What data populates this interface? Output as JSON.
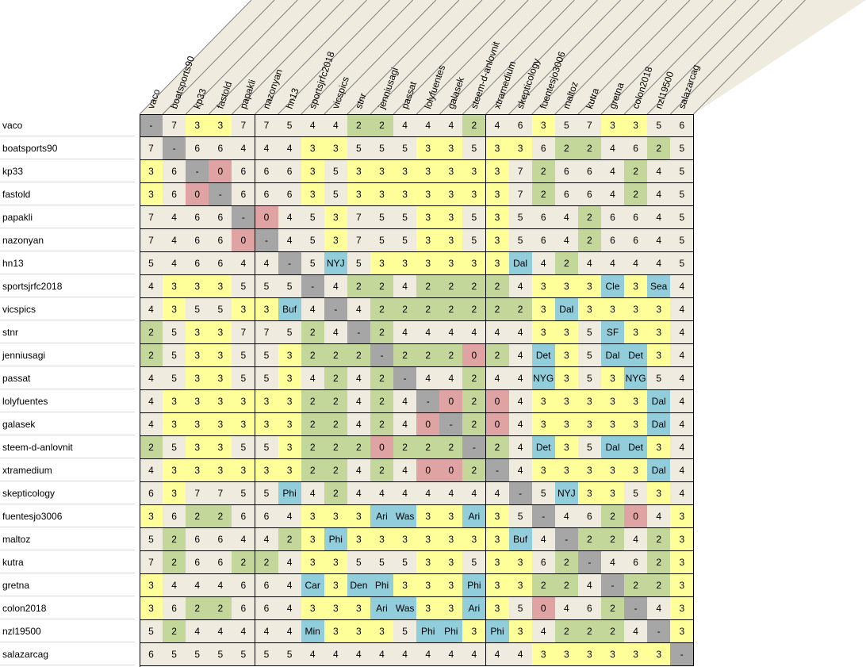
{
  "colors": {
    "self": "#a6a6a6",
    "zero": "#e0a3a3",
    "two": "#c4d79b",
    "three": "#ffff99",
    "default": "#efebde",
    "team": "#92cddc",
    "header_bg": "#efebde",
    "header_line": "#808080"
  },
  "players": [
    "vaco",
    "boatsports90",
    "kp33",
    "fastold",
    "papakli",
    "nazonyan",
    "hn13",
    "sportsjrfc2018",
    "vicspics",
    "stnr",
    "jenniusagi",
    "passat",
    "lolyfuentes",
    "galasek",
    "steem-d-anlovnit",
    "xtramedium",
    "skepticology",
    "fuentesjo3006",
    "maltoz",
    "kutra",
    "gretna",
    "colon2018",
    "nzl19500",
    "salazarcag"
  ],
  "matrix": [
    [
      "-",
      "7",
      "3",
      "3",
      "7",
      "7",
      "5",
      "4",
      "4",
      "2",
      "2",
      "4",
      "4",
      "4",
      "2",
      "4",
      "6",
      "3",
      "5",
      "7",
      "3",
      "3",
      "5",
      "6"
    ],
    [
      "7",
      "-",
      "6",
      "6",
      "4",
      "4",
      "4",
      "3",
      "3",
      "5",
      "5",
      "5",
      "3",
      "3",
      "5",
      "3",
      "3",
      "6",
      "2",
      "2",
      "4",
      "6",
      "2",
      "5"
    ],
    [
      "3",
      "6",
      "-",
      "0",
      "6",
      "6",
      "6",
      "3",
      "5",
      "3",
      "3",
      "3",
      "3",
      "3",
      "3",
      "3",
      "7",
      "2",
      "6",
      "6",
      "4",
      "2",
      "4",
      "5"
    ],
    [
      "3",
      "6",
      "0",
      "-",
      "6",
      "6",
      "6",
      "3",
      "5",
      "3",
      "3",
      "3",
      "3",
      "3",
      "3",
      "3",
      "7",
      "2",
      "6",
      "6",
      "4",
      "2",
      "4",
      "5"
    ],
    [
      "7",
      "4",
      "6",
      "6",
      "-",
      "0",
      "4",
      "5",
      "3",
      "7",
      "5",
      "5",
      "3",
      "3",
      "5",
      "3",
      "5",
      "6",
      "4",
      "2",
      "6",
      "6",
      "4",
      "5"
    ],
    [
      "7",
      "4",
      "6",
      "6",
      "0",
      "-",
      "4",
      "5",
      "3",
      "7",
      "5",
      "5",
      "3",
      "3",
      "5",
      "3",
      "5",
      "6",
      "4",
      "2",
      "6",
      "6",
      "4",
      "5"
    ],
    [
      "5",
      "4",
      "6",
      "6",
      "4",
      "4",
      "-",
      "5",
      "NYJ",
      "5",
      "3",
      "3",
      "3",
      "3",
      "3",
      "3",
      "Dal",
      "4",
      "2",
      "4",
      "4",
      "4",
      "4",
      "5"
    ],
    [
      "4",
      "3",
      "3",
      "3",
      "5",
      "5",
      "5",
      "-",
      "4",
      "2",
      "2",
      "4",
      "2",
      "2",
      "2",
      "2",
      "4",
      "3",
      "3",
      "3",
      "Cle",
      "3",
      "Sea",
      "4"
    ],
    [
      "4",
      "3",
      "5",
      "5",
      "3",
      "3",
      "Buf",
      "4",
      "-",
      "4",
      "2",
      "2",
      "2",
      "2",
      "2",
      "2",
      "2",
      "3",
      "Dal",
      "3",
      "3",
      "3",
      "3",
      "4"
    ],
    [
      "2",
      "5",
      "3",
      "3",
      "7",
      "7",
      "5",
      "2",
      "4",
      "-",
      "2",
      "4",
      "4",
      "4",
      "4",
      "4",
      "4",
      "3",
      "3",
      "5",
      "SF",
      "3",
      "3",
      "4"
    ],
    [
      "2",
      "5",
      "3",
      "3",
      "5",
      "5",
      "3",
      "2",
      "2",
      "2",
      "-",
      "2",
      "2",
      "2",
      "0",
      "2",
      "4",
      "Det",
      "3",
      "5",
      "Dal",
      "Det",
      "3",
      "4"
    ],
    [
      "4",
      "5",
      "3",
      "3",
      "5",
      "5",
      "3",
      "4",
      "2",
      "4",
      "2",
      "-",
      "4",
      "4",
      "2",
      "4",
      "4",
      "NYG",
      "3",
      "5",
      "3",
      "NYG",
      "5",
      "4"
    ],
    [
      "4",
      "3",
      "3",
      "3",
      "3",
      "3",
      "3",
      "2",
      "2",
      "4",
      "2",
      "4",
      "-",
      "0",
      "2",
      "0",
      "4",
      "3",
      "3",
      "3",
      "3",
      "3",
      "Dal",
      "4"
    ],
    [
      "4",
      "3",
      "3",
      "3",
      "3",
      "3",
      "3",
      "2",
      "2",
      "4",
      "2",
      "4",
      "0",
      "-",
      "2",
      "0",
      "4",
      "3",
      "3",
      "3",
      "3",
      "3",
      "Dal",
      "4"
    ],
    [
      "2",
      "5",
      "3",
      "3",
      "5",
      "5",
      "3",
      "2",
      "2",
      "2",
      "0",
      "2",
      "2",
      "2",
      "-",
      "2",
      "4",
      "Det",
      "3",
      "5",
      "Dal",
      "Det",
      "3",
      "4"
    ],
    [
      "4",
      "3",
      "3",
      "3",
      "3",
      "3",
      "3",
      "2",
      "2",
      "4",
      "2",
      "4",
      "0",
      "0",
      "2",
      "-",
      "4",
      "3",
      "3",
      "3",
      "3",
      "3",
      "Dal",
      "4"
    ],
    [
      "6",
      "3",
      "7",
      "7",
      "5",
      "5",
      "Phi",
      "4",
      "2",
      "4",
      "4",
      "4",
      "4",
      "4",
      "4",
      "4",
      "-",
      "5",
      "NYJ",
      "3",
      "3",
      "5",
      "3",
      "4"
    ],
    [
      "3",
      "6",
      "2",
      "2",
      "6",
      "6",
      "4",
      "3",
      "3",
      "3",
      "Ari",
      "Was",
      "3",
      "3",
      "Ari",
      "3",
      "5",
      "-",
      "4",
      "6",
      "2",
      "0",
      "4",
      "3"
    ],
    [
      "5",
      "2",
      "6",
      "6",
      "4",
      "4",
      "2",
      "3",
      "Phi",
      "3",
      "3",
      "3",
      "3",
      "3",
      "3",
      "3",
      "Buf",
      "4",
      "-",
      "2",
      "2",
      "4",
      "2",
      "3"
    ],
    [
      "7",
      "2",
      "6",
      "6",
      "2",
      "2",
      "4",
      "3",
      "3",
      "5",
      "5",
      "5",
      "3",
      "3",
      "5",
      "3",
      "3",
      "6",
      "2",
      "-",
      "4",
      "6",
      "2",
      "3"
    ],
    [
      "3",
      "4",
      "4",
      "4",
      "6",
      "6",
      "4",
      "Car",
      "3",
      "Den",
      "Phi",
      "3",
      "3",
      "3",
      "Phi",
      "3",
      "3",
      "2",
      "2",
      "4",
      "-",
      "2",
      "2",
      "3"
    ],
    [
      "3",
      "6",
      "2",
      "2",
      "6",
      "6",
      "4",
      "3",
      "3",
      "3",
      "Ari",
      "Was",
      "3",
      "3",
      "Ari",
      "3",
      "5",
      "0",
      "4",
      "6",
      "2",
      "-",
      "4",
      "3"
    ],
    [
      "5",
      "2",
      "4",
      "4",
      "4",
      "4",
      "4",
      "Min",
      "3",
      "3",
      "3",
      "5",
      "Phi",
      "Phi",
      "3",
      "Phi",
      "3",
      "4",
      "2",
      "2",
      "2",
      "4",
      "-",
      "3"
    ],
    [
      "6",
      "5",
      "5",
      "5",
      "5",
      "5",
      "5",
      "4",
      "4",
      "4",
      "4",
      "4",
      "4",
      "4",
      "4",
      "4",
      "4",
      "3",
      "3",
      "3",
      "3",
      "3",
      "3",
      "-"
    ]
  ]
}
